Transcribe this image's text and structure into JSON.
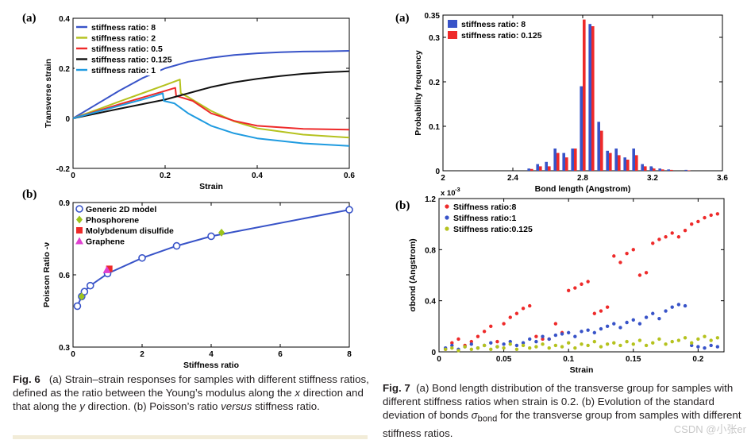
{
  "figure6": {
    "panel_a_label": "(a)",
    "panel_b_label": "(b)",
    "caption": {
      "fig": "Fig. 6",
      "p1": "(a) Strain–strain responses for samples with different stiffness ratios, defined as the ratio between the Young’s modulus along the ",
      "x": "x",
      "p2": " direction and that along the ",
      "y": "y",
      "p3": " direction. (b) Poisson’s ratio ",
      "versus": "versus",
      "p4": " stiffness ratio."
    }
  },
  "figure7": {
    "panel_a_label": "(a)",
    "panel_b_label": "(b)",
    "caption": {
      "fig": "Fig. 7",
      "p1": "(a) Bond length distribution of the transverse group for samples with different stiffness ratios when strain is 0.2. (b) Evolution of the standard deviation of bonds ",
      "sigma": "σ",
      "sub": "bond",
      "p2": " for the transverse group from samples with different stiffness ratios."
    }
  },
  "watermark": "CSDN @小张er",
  "colors": {
    "blue": "#3853c8",
    "olive": "#b5c21e",
    "red": "#ee2a2a",
    "black": "#111111",
    "cyan": "#1f9be0",
    "magenta": "#e040d0",
    "green_diamond": "#9ec41c"
  },
  "chart_data": [
    {
      "id": "fig6a",
      "type": "line",
      "xlabel": "Strain",
      "ylabel": "Transverse strain",
      "xlim": [
        0,
        0.6
      ],
      "ylim": [
        -0.2,
        0.4
      ],
      "xticks": [
        0,
        0.2,
        0.4,
        0.6
      ],
      "xtick_labels": [
        "0",
        "0.2",
        "0.4",
        "0.6"
      ],
      "yticks": [
        -0.2,
        0,
        0.2,
        0.4
      ],
      "ytick_labels": [
        "-0.2",
        "0",
        "0.2",
        "0.4"
      ],
      "legend_position": "top-left",
      "series": [
        {
          "name": "stiffness ratio: 8",
          "color": "#3853c8",
          "x": [
            0,
            0.05,
            0.1,
            0.15,
            0.2,
            0.25,
            0.3,
            0.35,
            0.4,
            0.45,
            0.5,
            0.55,
            0.6
          ],
          "y": [
            0,
            0.055,
            0.11,
            0.16,
            0.2,
            0.226,
            0.242,
            0.253,
            0.26,
            0.264,
            0.267,
            0.268,
            0.27
          ]
        },
        {
          "name": "stiffness ratio: 2",
          "color": "#b5c21e",
          "x": [
            0,
            0.05,
            0.1,
            0.15,
            0.2,
            0.232,
            0.234,
            0.25,
            0.3,
            0.35,
            0.4,
            0.5,
            0.6
          ],
          "y": [
            0,
            0.033,
            0.067,
            0.1,
            0.133,
            0.155,
            0.1,
            0.085,
            0.03,
            -0.012,
            -0.04,
            -0.065,
            -0.077
          ]
        },
        {
          "name": "stiffness ratio: 0.5",
          "color": "#ee2a2a",
          "x": [
            0,
            0.05,
            0.1,
            0.15,
            0.2,
            0.222,
            0.224,
            0.26,
            0.3,
            0.35,
            0.4,
            0.5,
            0.6
          ],
          "y": [
            0,
            0.028,
            0.056,
            0.083,
            0.11,
            0.122,
            0.09,
            0.07,
            0.02,
            -0.01,
            -0.03,
            -0.042,
            -0.045
          ]
        },
        {
          "name": "stiffness ratio: 0.125",
          "color": "#111111",
          "x": [
            0,
            0.1,
            0.2,
            0.25,
            0.3,
            0.35,
            0.4,
            0.45,
            0.5,
            0.55,
            0.6
          ],
          "y": [
            0,
            0.038,
            0.075,
            0.1,
            0.125,
            0.144,
            0.158,
            0.169,
            0.178,
            0.184,
            0.188
          ]
        },
        {
          "name": "stiffness ratio: 1",
          "color": "#1f9be0",
          "x": [
            0,
            0.05,
            0.1,
            0.15,
            0.195,
            0.197,
            0.22,
            0.25,
            0.3,
            0.35,
            0.4,
            0.5,
            0.6
          ],
          "y": [
            0,
            0.025,
            0.05,
            0.075,
            0.1,
            0.07,
            0.06,
            0.02,
            -0.03,
            -0.06,
            -0.08,
            -0.1,
            -0.11
          ]
        }
      ]
    },
    {
      "id": "fig6b",
      "type": "line",
      "xlabel": "Stiffness ratio",
      "ylabel": "Poisson Ratio -ν",
      "xlim": [
        0,
        8
      ],
      "ylim": [
        0.3,
        0.9
      ],
      "xticks": [
        0,
        2,
        4,
        6,
        8
      ],
      "xtick_labels": [
        "0",
        "2",
        "4",
        "6",
        "8"
      ],
      "yticks": [
        0.3,
        0.6,
        0.9
      ],
      "ytick_labels": [
        "0.3",
        "0.6",
        "0.9"
      ],
      "legend_position": "top-left",
      "series": [
        {
          "name": "Generic 2D model",
          "color": "#3853c8",
          "marker": "circle",
          "x": [
            0.125,
            0.25,
            0.33,
            0.5,
            1,
            2,
            3,
            4,
            8
          ],
          "y": [
            0.47,
            0.51,
            0.53,
            0.555,
            0.605,
            0.67,
            0.72,
            0.76,
            0.87
          ]
        },
        {
          "name": "Phosphorene",
          "color": "#9ec41c",
          "marker": "diamond",
          "x": [
            0.25,
            4.3
          ],
          "y": [
            0.51,
            0.775
          ]
        },
        {
          "name": "Molybdenum disulfide",
          "color": "#ee2a2a",
          "marker": "square",
          "x": [
            1.05
          ],
          "y": [
            0.625
          ]
        },
        {
          "name": "Graphene",
          "color": "#e040d0",
          "marker": "triangle",
          "x": [
            0.98
          ],
          "y": [
            0.62
          ]
        }
      ]
    },
    {
      "id": "fig7a",
      "type": "bar",
      "xlabel": "Bond length (Angstrom)",
      "ylabel": "Probability frequency",
      "xlim": [
        2,
        3.6
      ],
      "ylim": [
        0,
        0.35
      ],
      "xticks": [
        2,
        2.4,
        2.8,
        3.2,
        3.6
      ],
      "xtick_labels": [
        "2",
        "2.4",
        "2.8",
        "3.2",
        "3.6"
      ],
      "yticks": [
        0,
        0.1,
        0.2,
        0.3,
        0.35
      ],
      "ytick_labels": [
        "0",
        "0.1",
        "0.2",
        "0.3",
        "0.35"
      ],
      "legend_position": "top-left",
      "categories": [
        2.5,
        2.55,
        2.6,
        2.65,
        2.7,
        2.75,
        2.8,
        2.85,
        2.9,
        2.95,
        3.0,
        3.05,
        3.1,
        3.15,
        3.2,
        3.25,
        3.3,
        3.4
      ],
      "series": [
        {
          "name": "stiffness ratio: 8",
          "color": "#3853c8",
          "values": [
            0.005,
            0.015,
            0.02,
            0.05,
            0.04,
            0.05,
            0.19,
            0.33,
            0.11,
            0.045,
            0.05,
            0.03,
            0.05,
            0.015,
            0.01,
            0.005,
            0.003,
            0.002
          ]
        },
        {
          "name": "stiffness ratio: 0.125",
          "color": "#ee2a2a",
          "values": [
            0.004,
            0.01,
            0.01,
            0.04,
            0.03,
            0.05,
            0.34,
            0.325,
            0.09,
            0.04,
            0.035,
            0.025,
            0.035,
            0.01,
            0.005,
            0.003,
            0.002,
            0.001
          ]
        }
      ]
    },
    {
      "id": "fig7b",
      "type": "scatter",
      "xlabel": "Strain",
      "ylabel": "σbond (Angstrom)",
      "y_exponent_label": "x 10",
      "y_exponent": "-3",
      "xlim": [
        0,
        0.22
      ],
      "ylim": [
        0,
        1.2
      ],
      "xticks": [
        0,
        0.05,
        0.1,
        0.15,
        0.2
      ],
      "xtick_labels": [
        "0",
        "0.05",
        "0.1",
        "0.15",
        "0.2"
      ],
      "yticks": [
        0,
        0.4,
        0.8,
        1.2
      ],
      "ytick_labels": [
        "0",
        "0.4",
        "0.8",
        "1.2"
      ],
      "legend_position": "top-left",
      "series": [
        {
          "name": "Stiffness ratio:8",
          "color": "#ee2a2a",
          "x": [
            0.005,
            0.01,
            0.015,
            0.02,
            0.025,
            0.03,
            0.035,
            0.04,
            0.045,
            0.05,
            0.055,
            0.06,
            0.065,
            0.07,
            0.075,
            0.08,
            0.085,
            0.09,
            0.095,
            0.1,
            0.105,
            0.11,
            0.115,
            0.12,
            0.125,
            0.13,
            0.135,
            0.14,
            0.145,
            0.15,
            0.155,
            0.16,
            0.165,
            0.17,
            0.175,
            0.18,
            0.185,
            0.19,
            0.195,
            0.2,
            0.205,
            0.21,
            0.215
          ],
          "y": [
            0.02,
            0.07,
            0.1,
            0.05,
            0.08,
            0.12,
            0.16,
            0.2,
            0.08,
            0.22,
            0.27,
            0.3,
            0.34,
            0.36,
            0.12,
            0.1,
            0.1,
            0.22,
            0.15,
            0.48,
            0.5,
            0.53,
            0.55,
            0.3,
            0.32,
            0.35,
            0.75,
            0.7,
            0.77,
            0.8,
            0.6,
            0.62,
            0.85,
            0.88,
            0.9,
            0.93,
            0.9,
            0.95,
            1.0,
            1.02,
            1.05,
            1.07,
            1.08
          ]
        },
        {
          "name": "Stiffness ratio:1",
          "color": "#3853c8",
          "x": [
            0.005,
            0.01,
            0.015,
            0.02,
            0.025,
            0.03,
            0.035,
            0.04,
            0.045,
            0.05,
            0.055,
            0.06,
            0.065,
            0.07,
            0.075,
            0.08,
            0.085,
            0.09,
            0.095,
            0.1,
            0.105,
            0.11,
            0.115,
            0.12,
            0.125,
            0.13,
            0.135,
            0.14,
            0.145,
            0.15,
            0.155,
            0.16,
            0.165,
            0.17,
            0.175,
            0.18,
            0.185,
            0.19,
            0.195,
            0.2,
            0.205,
            0.21,
            0.215
          ],
          "y": [
            0.03,
            0.05,
            0.02,
            0.04,
            0.06,
            0.03,
            0.05,
            0.07,
            0.04,
            0.06,
            0.08,
            0.05,
            0.07,
            0.1,
            0.08,
            0.12,
            0.1,
            0.13,
            0.14,
            0.15,
            0.12,
            0.16,
            0.17,
            0.15,
            0.18,
            0.2,
            0.22,
            0.19,
            0.23,
            0.25,
            0.22,
            0.27,
            0.3,
            0.26,
            0.32,
            0.35,
            0.37,
            0.36,
            0.05,
            0.04,
            0.03,
            0.05,
            0.04
          ]
        },
        {
          "name": "Stiffness ratio:0.125",
          "color": "#b5c21e",
          "x": [
            0.005,
            0.01,
            0.015,
            0.02,
            0.025,
            0.03,
            0.035,
            0.04,
            0.045,
            0.05,
            0.055,
            0.06,
            0.065,
            0.07,
            0.075,
            0.08,
            0.085,
            0.09,
            0.095,
            0.1,
            0.105,
            0.11,
            0.115,
            0.12,
            0.125,
            0.13,
            0.135,
            0.14,
            0.145,
            0.15,
            0.155,
            0.16,
            0.165,
            0.17,
            0.175,
            0.18,
            0.185,
            0.19,
            0.195,
            0.2,
            0.205,
            0.21,
            0.215
          ],
          "y": [
            0.02,
            0.03,
            0.01,
            0.04,
            0.02,
            0.03,
            0.05,
            0.02,
            0.04,
            0.03,
            0.06,
            0.02,
            0.05,
            0.03,
            0.04,
            0.06,
            0.03,
            0.05,
            0.04,
            0.07,
            0.03,
            0.06,
            0.05,
            0.08,
            0.04,
            0.06,
            0.07,
            0.05,
            0.08,
            0.06,
            0.09,
            0.05,
            0.07,
            0.1,
            0.06,
            0.08,
            0.09,
            0.11,
            0.07,
            0.1,
            0.12,
            0.09,
            0.11
          ]
        }
      ]
    }
  ]
}
